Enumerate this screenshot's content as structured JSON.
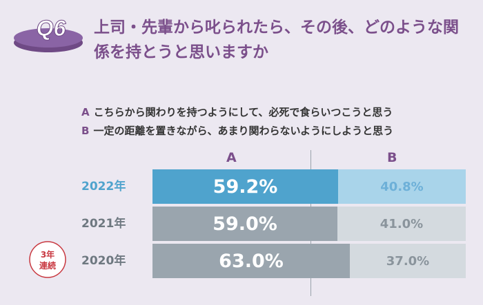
{
  "question": {
    "badge": "Q6",
    "title": "上司・先輩から叱られたら、その後、どのような関係を持とうと思いますか"
  },
  "legend": [
    {
      "key": "A",
      "text": "こちらから関わりを持つようにして、必死で食らいつこうと思う"
    },
    {
      "key": "B",
      "text": "一定の距離を置きながら、あまり関わらないようにしようと思う"
    }
  ],
  "columns": [
    "A",
    "B"
  ],
  "stamp": {
    "line1": "3年",
    "line2": "連続"
  },
  "colors": {
    "title": "#7b4f8b",
    "badge_disc": "#8a64a5",
    "highlight_a": "#4fa3cd",
    "highlight_b": "#a9d4ea",
    "highlight_b_text": "#6db0d8",
    "highlight_year": "#4fa3cd",
    "muted_a": "#9aa5ae",
    "muted_b": "#d4dadf",
    "muted_b_text": "#8a949c",
    "muted_year": "#6e7880",
    "stamp": "#c8373f"
  },
  "chart_data": {
    "type": "bar",
    "orientation": "horizontal",
    "stacked": true,
    "unit": "%",
    "xlim": [
      0,
      100
    ],
    "categories": [
      "2022年",
      "2021年",
      "2020年"
    ],
    "series": [
      {
        "name": "A",
        "values": [
          59.2,
          59.0,
          63.0
        ],
        "labels": [
          "59.2%",
          "59.0%",
          "63.0%"
        ]
      },
      {
        "name": "B",
        "values": [
          40.8,
          41.0,
          37.0
        ],
        "labels": [
          "40.8%",
          "41.0%",
          "37.0%"
        ]
      }
    ],
    "highlight_category": "2022年"
  }
}
